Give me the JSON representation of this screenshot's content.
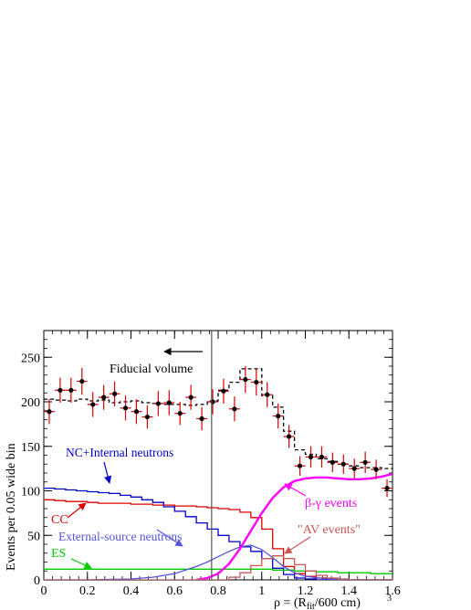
{
  "chart_data": {
    "type": "histogram",
    "xlabel_main": "ρ = (R",
    "xlabel_sub": "fit",
    "xlabel_tail": "/600 cm)",
    "xlabel_sup": "3",
    "ylabel": "Events per 0.05 wide bin",
    "xlim": [
      0,
      1.6
    ],
    "ylim": [
      0,
      280
    ],
    "xticks": [
      0,
      0.2,
      0.4,
      0.6,
      0.8,
      1,
      1.2,
      1.4,
      1.6
    ],
    "xtick_labels": [
      "0",
      "0.2",
      "0.4",
      "0.6",
      "0.8",
      "1",
      "1.2",
      "1.4",
      "1.6"
    ],
    "yticks": [
      0,
      50,
      100,
      150,
      200,
      250
    ],
    "ytick_labels": [
      "0",
      "50",
      "100",
      "150",
      "200",
      "250"
    ],
    "fiducial_cut_x": 0.77,
    "annotations": {
      "fiducial": "Fiducial volume",
      "nc": "NC+Internal neutrons",
      "cc": "CC",
      "ext": "External-source neutrons",
      "es": "ES",
      "bg": "β-γ events",
      "av": "\"AV events\""
    },
    "colors": {
      "data": "#000000",
      "errorbar": "#dd0000",
      "total": "#000000",
      "cc": "#dd0000",
      "nc": "#0000cc",
      "ext": "#5555dd",
      "es": "#00cc00",
      "bg": "#ff00ff",
      "av": "#cc5555",
      "fiducial_line": "#555555"
    },
    "data_points": {
      "x": [
        0.025,
        0.075,
        0.125,
        0.175,
        0.225,
        0.275,
        0.325,
        0.375,
        0.425,
        0.475,
        0.525,
        0.575,
        0.625,
        0.675,
        0.725,
        0.775,
        0.825,
        0.875,
        0.925,
        0.975,
        1.025,
        1.075,
        1.125,
        1.175,
        1.225,
        1.275,
        1.325,
        1.375,
        1.425,
        1.475,
        1.525,
        1.575
      ],
      "y": [
        189,
        213,
        213,
        223,
        197,
        205,
        209,
        193,
        189,
        183,
        198,
        199,
        187,
        205,
        181,
        200,
        212,
        192,
        225,
        222,
        208,
        184,
        161,
        128,
        138,
        138,
        132,
        130,
        125,
        132,
        124,
        103
      ],
      "err": [
        14,
        14,
        14,
        15,
        14,
        14,
        14,
        14,
        14,
        13,
        14,
        14,
        13,
        14,
        13,
        14,
        14,
        14,
        15,
        15,
        14,
        14,
        13,
        11,
        12,
        12,
        11,
        11,
        11,
        12,
        11,
        10
      ]
    },
    "series": [
      {
        "name": "total",
        "style": "dashed",
        "values": [
          203,
          202,
          201,
          203,
          201,
          202,
          199,
          200,
          201,
          199,
          198,
          197,
          197,
          196,
          197,
          201,
          213,
          222,
          237,
          237,
          207,
          194,
          167,
          146,
          141,
          136,
          133,
          130,
          128,
          126,
          126,
          125
        ]
      },
      {
        "name": "CC",
        "style": "step",
        "values": [
          90,
          89,
          88,
          88,
          87,
          86,
          86,
          86,
          85,
          85,
          84,
          84,
          83,
          83,
          82,
          81,
          80,
          79,
          76,
          70,
          57,
          35,
          15,
          7,
          4,
          2,
          1,
          0,
          0,
          0,
          0,
          0
        ]
      },
      {
        "name": "NC+Internal neutrons",
        "style": "step",
        "values": [
          103,
          102,
          101,
          100,
          99,
          98,
          97,
          95,
          93,
          90,
          87,
          82,
          77,
          71,
          64,
          57,
          50,
          43,
          37,
          32,
          24,
          13,
          6,
          2,
          1,
          0,
          0,
          0,
          0,
          0,
          0,
          0
        ]
      },
      {
        "name": "ES",
        "style": "step",
        "values": [
          12,
          12,
          12,
          12,
          12,
          12,
          12,
          12,
          12,
          12,
          12,
          12,
          12,
          12,
          12,
          12,
          12,
          12,
          12,
          12,
          12,
          11,
          11,
          10,
          10,
          9,
          9,
          8,
          8,
          8,
          7,
          7
        ]
      },
      {
        "name": "External-source neutrons",
        "style": "smooth",
        "x": [
          0,
          0.2,
          0.4,
          0.5,
          0.6,
          0.7,
          0.75,
          0.8,
          0.85,
          0.9,
          0.95,
          1.0,
          1.05,
          1.1,
          1.15,
          1.2,
          1.3,
          1.4,
          1.5,
          1.6
        ],
        "values": [
          0,
          0,
          1,
          3,
          7,
          15,
          20,
          26,
          32,
          37,
          39,
          34,
          25,
          15,
          8,
          4,
          1,
          0,
          0,
          0
        ]
      },
      {
        "name": "β-γ events",
        "style": "smooth",
        "x": [
          0.7,
          0.75,
          0.8,
          0.85,
          0.9,
          0.95,
          1.0,
          1.05,
          1.1,
          1.15,
          1.2,
          1.25,
          1.3,
          1.35,
          1.4,
          1.45,
          1.5,
          1.55,
          1.6
        ],
        "values": [
          0,
          2,
          7,
          18,
          35,
          55,
          75,
          92,
          104,
          111,
          114,
          115,
          115,
          114,
          113,
          113,
          114,
          116,
          119
        ]
      },
      {
        "name": "\"AV events\"",
        "style": "step",
        "values": [
          0,
          0,
          0,
          0,
          0,
          0,
          0,
          0,
          0,
          0,
          0,
          0,
          0,
          0,
          0,
          0,
          0,
          3,
          8,
          16,
          24,
          27,
          24,
          17,
          10,
          5,
          2,
          1,
          0,
          0,
          0,
          0
        ]
      }
    ]
  }
}
